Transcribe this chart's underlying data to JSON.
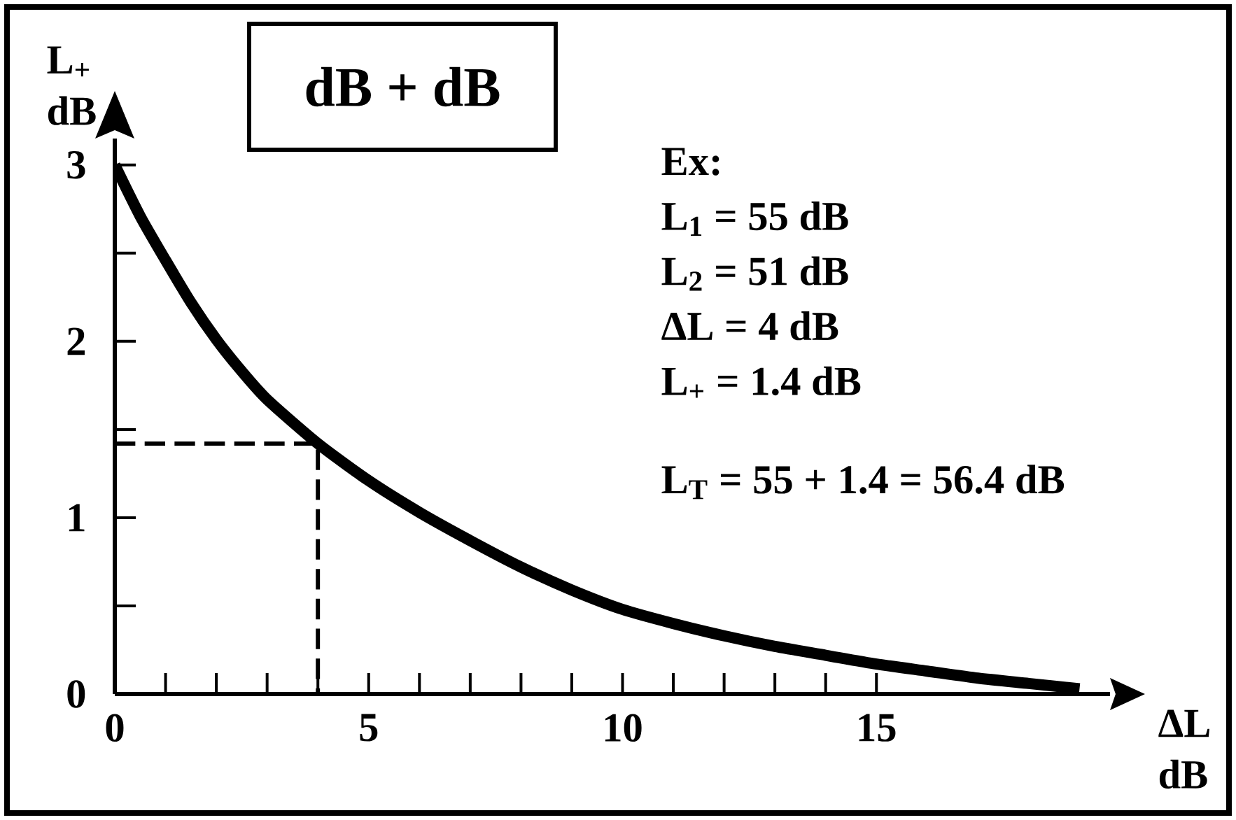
{
  "chart_data": {
    "type": "line",
    "title": "dB + dB",
    "xlabel": "ΔL dB",
    "ylabel": "L$_{+}$ dB",
    "annotations": [
      "Ex:",
      "L$_{1}$ = 55 dB",
      "L$_{2}$ = 51 dB",
      "ΔL = 4 dB",
      "L$_{+}$ = 1.4 dB",
      "L$_{T}$ = 55 + 1.4 = 56.4 dB"
    ],
    "xlim": [
      0,
      19.6
    ],
    "ylim": [
      0,
      3.15
    ],
    "xticks": [
      0,
      {
        "value": 1,
        "label": null
      },
      {
        "value": 2,
        "label": null
      },
      {
        "value": 3,
        "label": null
      },
      {
        "value": 4,
        "label": null
      },
      5,
      {
        "value": 6,
        "label": null
      },
      {
        "value": 7,
        "label": null
      },
      {
        "value": 8,
        "label": null
      },
      {
        "value": 9,
        "label": null
      },
      10,
      {
        "value": 11,
        "label": null
      },
      {
        "value": 12,
        "label": null
      },
      {
        "value": 13,
        "label": null
      },
      {
        "value": 14,
        "label": null
      },
      15
    ],
    "yticks": [
      0,
      {
        "value": 0.5,
        "label": null
      },
      1,
      {
        "value": 1.5,
        "label": null
      },
      2,
      {
        "value": 2.5,
        "label": null
      },
      3
    ],
    "series": [
      {
        "color": "#000000",
        "x": [
          0,
          0.5,
          1,
          1.5,
          2,
          2.5,
          3,
          4,
          5,
          6,
          7,
          8,
          9,
          10,
          11,
          12,
          13,
          14,
          15,
          16,
          17,
          18,
          19
        ],
        "values": [
          3.0,
          2.71,
          2.46,
          2.22,
          2.01,
          1.83,
          1.67,
          1.42,
          1.21,
          1.03,
          0.87,
          0.72,
          0.59,
          0.48,
          0.4,
          0.33,
          0.27,
          0.22,
          0.17,
          0.13,
          0.09,
          0.06,
          0.03
        ]
      },
      {
        "color": "#000000",
        "x": [
          0,
          4,
          4
        ],
        "values": [
          1.42,
          1.42,
          0
        ],
        "line_style": "dashed"
      }
    ]
  }
}
